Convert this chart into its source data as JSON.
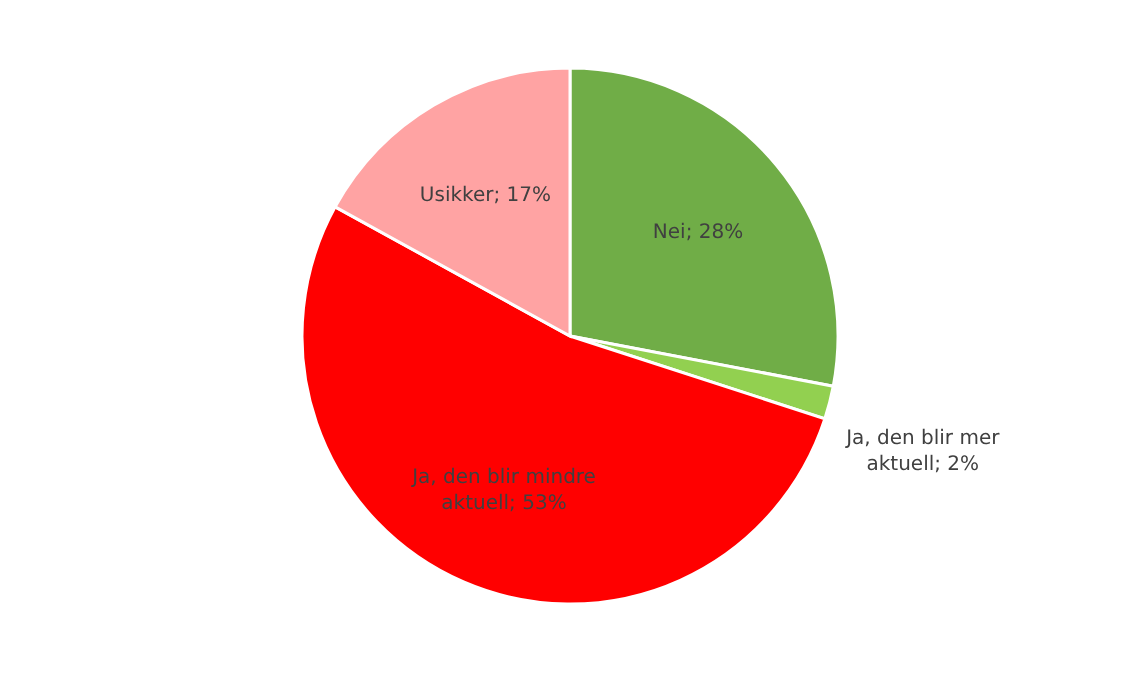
{
  "chart_data": {
    "type": "pie",
    "categories": [
      "Nei",
      "Ja, den blir mer aktuell",
      "Ja, den blir mindre aktuell",
      "Usikker"
    ],
    "values": [
      28,
      2,
      53,
      17
    ],
    "colors": [
      "#70ad47",
      "#92d050",
      "#ff0000",
      "#ffa3a3"
    ],
    "value_labels": [
      "28%",
      "2%",
      "53%",
      "17%"
    ]
  }
}
